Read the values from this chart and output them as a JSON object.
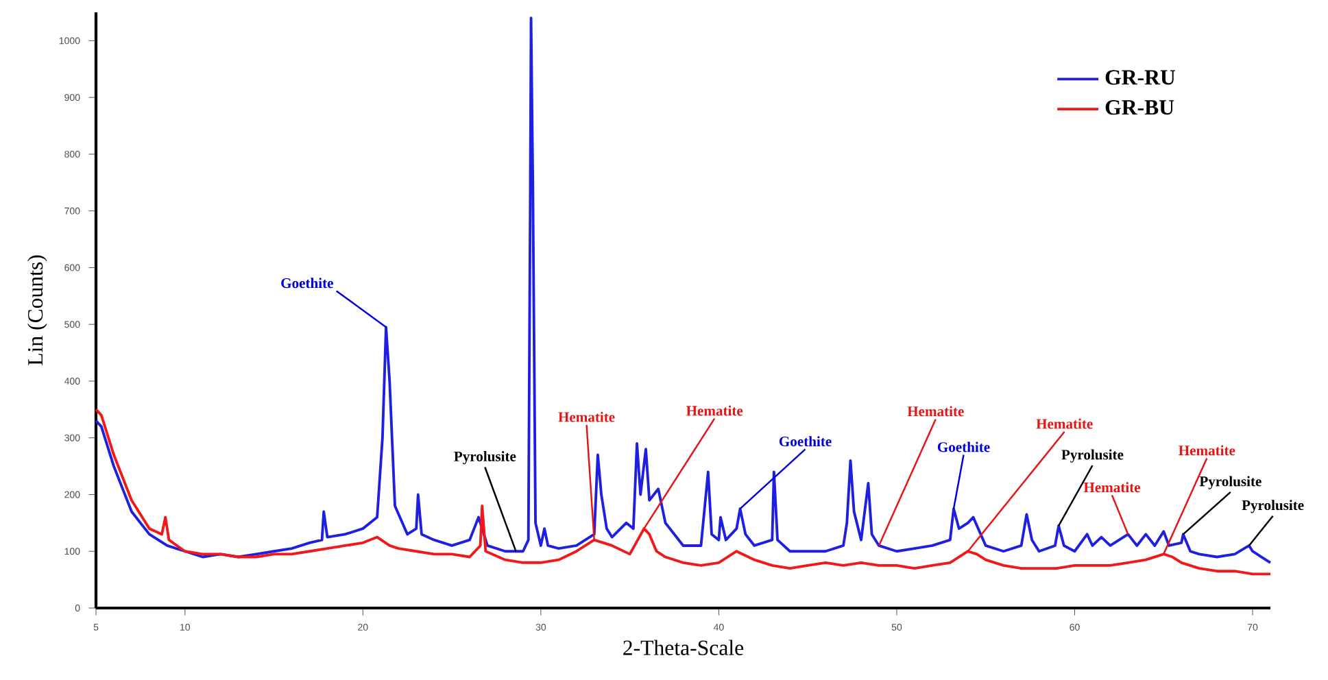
{
  "chart_data": {
    "type": "line",
    "xlabel": "2-Theta-Scale",
    "ylabel": "Lin (Counts)",
    "xlim": [
      5,
      71
    ],
    "ylim": [
      0,
      1050
    ],
    "xticks": [
      5,
      10,
      20,
      30,
      40,
      50,
      60,
      70
    ],
    "yticks": [
      0,
      100,
      200,
      300,
      400,
      500,
      600,
      700,
      800,
      900,
      1000
    ],
    "legend": "top right",
    "grid": false,
    "marker": "none",
    "line_style": "solid",
    "series": [
      {
        "name": "GR-RU",
        "color": "#1f1fe0",
        "x": [
          5.0,
          5.3,
          6,
          7,
          8,
          9,
          10,
          11,
          12,
          13,
          14,
          15,
          16,
          17,
          17.7,
          17.8,
          18,
          19,
          20,
          20.8,
          21.1,
          21.3,
          21.5,
          21.8,
          22.5,
          23,
          23.1,
          23.3,
          24,
          25,
          26,
          26.5,
          26.7,
          27,
          28,
          29,
          29.3,
          29.4,
          29.45,
          29.55,
          29.7,
          30,
          30.2,
          30.4,
          31,
          32,
          33,
          33.2,
          33.4,
          33.7,
          34,
          34.8,
          35.2,
          35.4,
          35.6,
          35.9,
          36.1,
          36.6,
          37,
          38,
          39,
          39.4,
          39.6,
          40,
          40.1,
          40.4,
          41,
          41.2,
          41.5,
          42,
          43,
          43.1,
          43.3,
          44,
          45,
          46,
          47,
          47.2,
          47.4,
          47.6,
          48,
          48.4,
          48.6,
          49,
          50,
          51,
          52,
          53,
          53.2,
          53.5,
          54,
          54.3,
          55,
          56,
          57,
          57.3,
          57.6,
          58,
          58.9,
          59.1,
          59.4,
          60,
          60.7,
          61,
          61.5,
          62,
          62.5,
          63,
          63.5,
          64,
          64.5,
          65,
          65.3,
          66,
          66.1,
          66.5,
          67,
          68,
          69,
          69.8,
          70,
          70.5,
          71
        ],
        "values": [
          330,
          320,
          250,
          170,
          130,
          110,
          100,
          90,
          95,
          90,
          95,
          100,
          105,
          115,
          120,
          170,
          125,
          130,
          140,
          160,
          300,
          495,
          400,
          180,
          130,
          140,
          200,
          130,
          120,
          110,
          120,
          160,
          140,
          110,
          100,
          100,
          120,
          700,
          1040,
          750,
          150,
          110,
          140,
          110,
          105,
          110,
          130,
          270,
          200,
          140,
          125,
          150,
          140,
          290,
          200,
          280,
          190,
          210,
          150,
          110,
          110,
          240,
          130,
          120,
          160,
          120,
          140,
          175,
          130,
          110,
          120,
          240,
          120,
          100,
          100,
          100,
          110,
          150,
          260,
          170,
          120,
          220,
          130,
          110,
          100,
          105,
          110,
          120,
          175,
          140,
          150,
          160,
          110,
          100,
          110,
          165,
          120,
          100,
          110,
          145,
          110,
          100,
          130,
          110,
          125,
          110,
          120,
          130,
          110,
          130,
          110,
          135,
          110,
          115,
          130,
          100,
          95,
          90,
          95,
          110,
          100,
          90,
          80
        ]
      },
      {
        "name": "GR-BU",
        "color": "#f01818",
        "x": [
          5.0,
          5.3,
          6,
          7,
          8,
          8.7,
          8.9,
          9.1,
          10,
          11,
          12,
          13,
          14,
          15,
          16,
          17,
          18,
          19,
          20,
          20.8,
          21.5,
          22,
          23,
          24,
          25,
          26,
          26.6,
          26.7,
          26.9,
          28,
          29,
          30,
          31,
          32,
          33,
          34,
          35,
          35.8,
          36.1,
          36.5,
          37,
          38,
          39,
          40,
          41,
          42,
          43,
          44,
          45,
          46,
          47,
          48,
          49,
          50,
          51,
          52,
          53,
          54,
          54.5,
          55,
          56,
          57,
          58,
          59,
          60,
          61,
          62,
          63,
          64,
          65,
          65.5,
          66,
          67,
          68,
          69,
          70,
          71
        ],
        "values": [
          350,
          340,
          270,
          190,
          140,
          130,
          160,
          120,
          100,
          95,
          95,
          90,
          90,
          95,
          95,
          100,
          105,
          110,
          115,
          125,
          110,
          105,
          100,
          95,
          95,
          90,
          110,
          180,
          100,
          85,
          80,
          80,
          85,
          100,
          120,
          110,
          95,
          140,
          130,
          100,
          90,
          80,
          75,
          80,
          100,
          85,
          75,
          70,
          75,
          80,
          75,
          80,
          75,
          75,
          70,
          75,
          80,
          100,
          95,
          85,
          75,
          70,
          70,
          70,
          75,
          75,
          75,
          80,
          85,
          95,
          90,
          80,
          70,
          65,
          65,
          60,
          60
        ]
      }
    ],
    "annotations": [
      {
        "text": "Goethite",
        "x": 21.3,
        "y": 495
      },
      {
        "text": "Pyrolusite",
        "x": 28.6,
        "y": 100
      },
      {
        "text": "Hematite",
        "x": 33,
        "y": 120
      },
      {
        "text": "Hematite",
        "x": 35.8,
        "y": 140
      },
      {
        "text": "Goethite",
        "x": 41.2,
        "y": 175
      },
      {
        "text": "Hematite",
        "x": 49,
        "y": 110
      },
      {
        "text": "Goethite",
        "x": 53.2,
        "y": 175
      },
      {
        "text": "Hematite",
        "x": 54,
        "y": 100
      },
      {
        "text": "Pyrolusite",
        "x": 59.1,
        "y": 145
      },
      {
        "text": "Hematite",
        "x": 63,
        "y": 130
      },
      {
        "text": "Hematite",
        "x": 65,
        "y": 95
      },
      {
        "text": "Pyrolusite",
        "x": 66.1,
        "y": 130
      },
      {
        "text": "Pyrolusite",
        "x": 69.8,
        "y": 110
      }
    ]
  }
}
